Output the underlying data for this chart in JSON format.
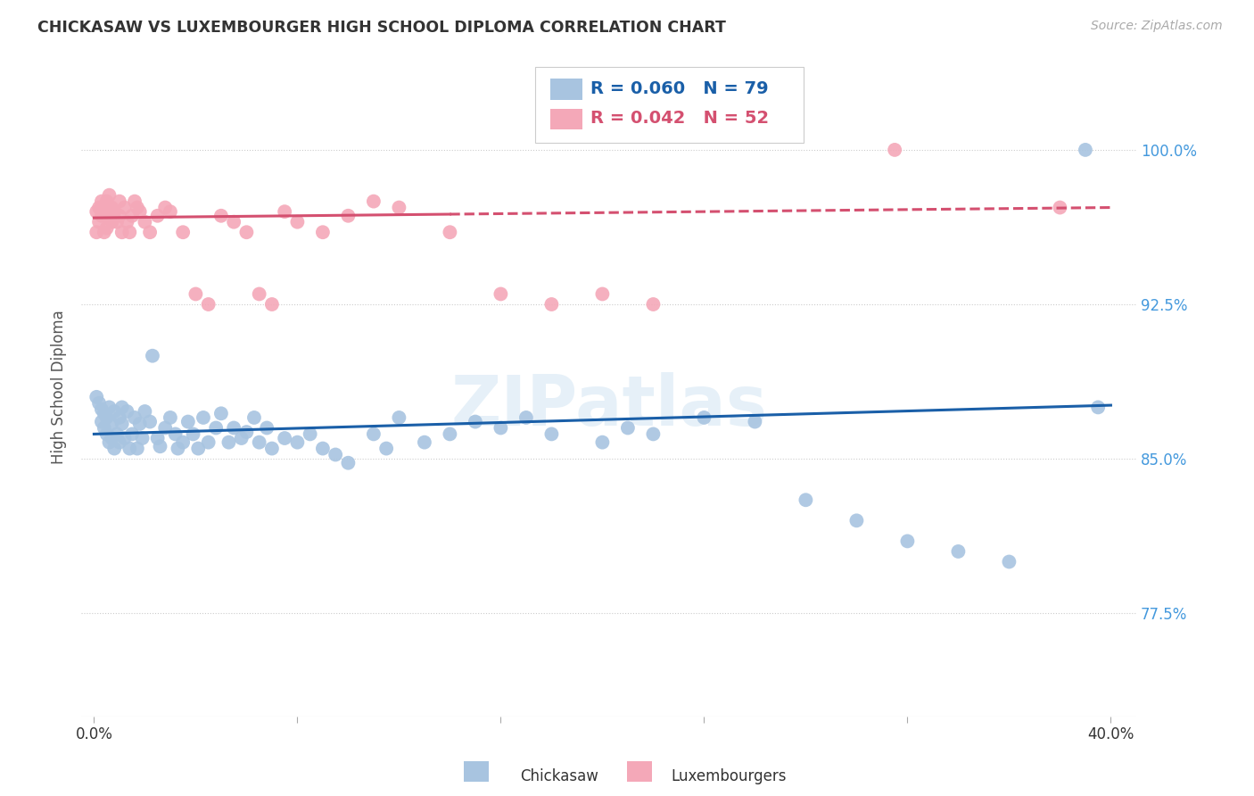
{
  "title": "CHICKASAW VS LUXEMBOURGER HIGH SCHOOL DIPLOMA CORRELATION CHART",
  "source": "Source: ZipAtlas.com",
  "ylabel": "High School Diploma",
  "ytick_labels": [
    "77.5%",
    "85.0%",
    "92.5%",
    "100.0%"
  ],
  "ytick_values": [
    0.775,
    0.85,
    0.925,
    1.0
  ],
  "xlim": [
    0.0,
    0.4
  ],
  "ylim": [
    0.725,
    1.045
  ],
  "watermark": "ZIPatlas",
  "chickasaw_R": 0.06,
  "chickasaw_N": 79,
  "luxembourger_R": 0.042,
  "luxembourger_N": 52,
  "chickasaw_color": "#a8c4e0",
  "luxembourger_color": "#f4a8b8",
  "trendline_blue": "#1a5fa8",
  "trendline_pink": "#d45070",
  "legend_text_blue": "#1a5fa8",
  "legend_text_pink": "#d45070",
  "title_color": "#333333",
  "right_tick_color": "#4499dd",
  "chick_trendline_y0": 0.862,
  "chick_trendline_y1": 0.876,
  "lux_trendline_y0": 0.967,
  "lux_trendline_y1": 0.972,
  "chickasaw_x": [
    0.001,
    0.002,
    0.003,
    0.003,
    0.004,
    0.004,
    0.005,
    0.005,
    0.006,
    0.006,
    0.007,
    0.007,
    0.008,
    0.008,
    0.009,
    0.01,
    0.01,
    0.011,
    0.011,
    0.012,
    0.013,
    0.014,
    0.015,
    0.016,
    0.017,
    0.018,
    0.019,
    0.02,
    0.022,
    0.023,
    0.025,
    0.026,
    0.028,
    0.03,
    0.032,
    0.033,
    0.035,
    0.037,
    0.039,
    0.041,
    0.043,
    0.045,
    0.048,
    0.05,
    0.053,
    0.055,
    0.058,
    0.06,
    0.063,
    0.065,
    0.068,
    0.07,
    0.075,
    0.08,
    0.085,
    0.09,
    0.095,
    0.1,
    0.11,
    0.115,
    0.12,
    0.13,
    0.14,
    0.15,
    0.16,
    0.17,
    0.18,
    0.2,
    0.21,
    0.22,
    0.24,
    0.26,
    0.28,
    0.3,
    0.32,
    0.34,
    0.36,
    0.39,
    0.395
  ],
  "chickasaw_y": [
    0.88,
    0.877,
    0.874,
    0.868,
    0.865,
    0.872,
    0.862,
    0.87,
    0.858,
    0.875,
    0.867,
    0.86,
    0.873,
    0.855,
    0.862,
    0.87,
    0.858,
    0.875,
    0.867,
    0.86,
    0.873,
    0.855,
    0.862,
    0.87,
    0.855,
    0.867,
    0.86,
    0.873,
    0.868,
    0.9,
    0.86,
    0.856,
    0.865,
    0.87,
    0.862,
    0.855,
    0.858,
    0.868,
    0.862,
    0.855,
    0.87,
    0.858,
    0.865,
    0.872,
    0.858,
    0.865,
    0.86,
    0.863,
    0.87,
    0.858,
    0.865,
    0.855,
    0.86,
    0.858,
    0.862,
    0.855,
    0.852,
    0.848,
    0.862,
    0.855,
    0.87,
    0.858,
    0.862,
    0.868,
    0.865,
    0.87,
    0.862,
    0.858,
    0.865,
    0.862,
    0.87,
    0.868,
    0.83,
    0.82,
    0.81,
    0.805,
    0.8,
    1.0,
    0.875
  ],
  "luxembourger_x": [
    0.001,
    0.001,
    0.002,
    0.002,
    0.003,
    0.003,
    0.004,
    0.004,
    0.005,
    0.005,
    0.006,
    0.006,
    0.007,
    0.007,
    0.008,
    0.009,
    0.01,
    0.01,
    0.011,
    0.012,
    0.013,
    0.014,
    0.015,
    0.016,
    0.017,
    0.018,
    0.02,
    0.022,
    0.025,
    0.028,
    0.03,
    0.035,
    0.04,
    0.045,
    0.05,
    0.055,
    0.06,
    0.065,
    0.07,
    0.075,
    0.08,
    0.09,
    0.1,
    0.11,
    0.12,
    0.14,
    0.16,
    0.18,
    0.2,
    0.22,
    0.315,
    0.38
  ],
  "luxembourger_y": [
    0.97,
    0.96,
    0.965,
    0.972,
    0.968,
    0.975,
    0.972,
    0.96,
    0.975,
    0.962,
    0.968,
    0.978,
    0.965,
    0.972,
    0.97,
    0.965,
    0.968,
    0.975,
    0.96,
    0.972,
    0.965,
    0.96,
    0.968,
    0.975,
    0.972,
    0.97,
    0.965,
    0.96,
    0.968,
    0.972,
    0.97,
    0.96,
    0.93,
    0.925,
    0.968,
    0.965,
    0.96,
    0.93,
    0.925,
    0.97,
    0.965,
    0.96,
    0.968,
    0.975,
    0.972,
    0.96,
    0.93,
    0.925,
    0.93,
    0.925,
    1.0,
    0.972
  ]
}
